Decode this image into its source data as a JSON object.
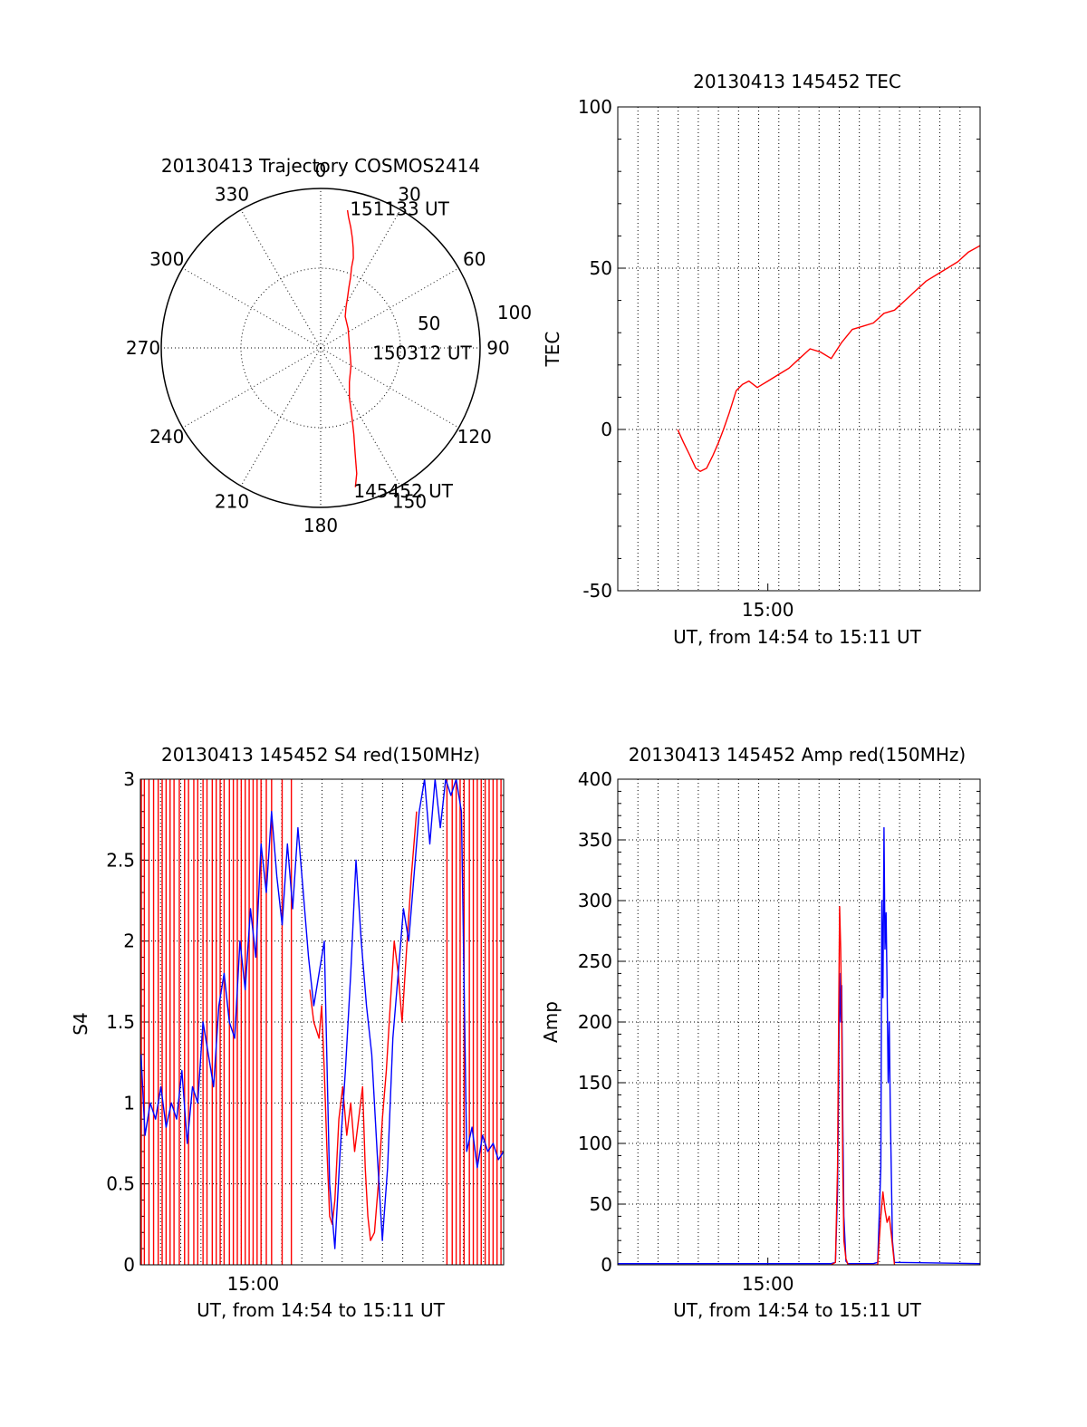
{
  "chart_data": [
    {
      "id": "trajectory",
      "type": "polar",
      "title": "20130413 Trajectory COSMOS2414",
      "angle_labels": [
        "0",
        "30",
        "60",
        "90",
        "120",
        "150",
        "180",
        "210",
        "240",
        "270",
        "300",
        "330"
      ],
      "radius_labels": [
        "50",
        "100"
      ],
      "rmax": 100,
      "series": [
        {
          "color": "#ff0000",
          "azimuth": [
            11,
            12,
            14,
            16,
            18,
            20,
            21,
            23,
            25,
            28,
            32,
            38,
            55,
            120,
            140,
            150,
            155,
            159,
            162,
            164,
            166
          ],
          "zenith": [
            88,
            84,
            78,
            72,
            66,
            60,
            54,
            48,
            42,
            36,
            30,
            25,
            21,
            22,
            28,
            36,
            46,
            58,
            70,
            82,
            90
          ]
        }
      ],
      "annotations": [
        {
          "text": "151133 UT",
          "azimuth": 14,
          "zenith": 90
        },
        {
          "text": "150312 UT",
          "azimuth": 95,
          "zenith": 36
        },
        {
          "text": "145452 UT",
          "azimuth": 165,
          "zenith": 93
        }
      ]
    },
    {
      "id": "tec",
      "type": "line",
      "title": "20130413 145452 TEC",
      "xlabel": "UT, from 14:54 to 15:11 UT",
      "ylabel": "TEC",
      "xlim": [
        14.8578,
        15.2011
      ],
      "ylim": [
        -50,
        100
      ],
      "y_ticks": [
        -50,
        0,
        50,
        100
      ],
      "x_ticks": [
        {
          "value": 15.0,
          "label": "15:00"
        }
      ],
      "series": [
        {
          "color": "#ff0000",
          "x": [
            14.9145,
            14.92,
            14.926,
            14.9317,
            14.936,
            14.942,
            14.948,
            14.9533,
            14.958,
            14.9633,
            14.97,
            14.976,
            14.982,
            14.99,
            15.0,
            15.01,
            15.02,
            15.03,
            15.04,
            15.05,
            15.06,
            15.07,
            15.08,
            15.09,
            15.1,
            15.11,
            15.12,
            15.13,
            15.14,
            15.15,
            15.16,
            15.17,
            15.18,
            15.19,
            15.2011
          ],
          "y": [
            0,
            -4,
            -8,
            -12,
            -13,
            -12,
            -8,
            -4,
            0,
            5,
            12,
            14,
            15,
            13,
            15,
            17,
            19,
            22,
            25,
            24,
            22,
            27,
            31,
            32,
            33,
            36,
            37,
            40,
            43,
            46,
            48,
            50,
            52,
            55,
            57
          ]
        }
      ]
    },
    {
      "id": "s4",
      "type": "line",
      "title": "20130413 145452 S4 red(150MHz)",
      "xlabel": "UT, from 14:54 to 15:11 UT",
      "ylabel": "S4",
      "xlim": [
        14.9145,
        15.19
      ],
      "ylim": [
        0,
        3
      ],
      "y_ticks": [
        0,
        0.5,
        1,
        1.5,
        2,
        2.5,
        3
      ],
      "y_tick_labels": [
        "0",
        "0.5",
        "1",
        "1.5",
        "2",
        "2.5",
        "3"
      ],
      "x_ticks": [
        {
          "value": 15.0,
          "label": "15:00"
        }
      ],
      "red_spikes_x": [
        14.9152,
        14.9175,
        14.921,
        14.9245,
        14.928,
        14.931,
        14.934,
        14.937,
        14.94,
        14.944,
        14.948,
        14.951,
        14.955,
        14.958,
        14.962,
        14.965,
        14.969,
        14.972,
        14.975,
        14.978,
        14.982,
        14.985,
        14.988,
        14.991,
        14.994,
        14.997,
        15.0,
        15.003,
        15.006,
        15.01,
        15.014,
        15.022,
        15.029,
        15.147,
        15.151,
        15.154,
        15.157,
        15.16,
        15.164,
        15.167,
        15.17,
        15.173,
        15.176,
        15.179,
        15.182,
        15.185,
        15.188
      ],
      "series": [
        {
          "name": "red",
          "color": "#ff0000",
          "x": [
            15.043,
            15.046,
            15.05,
            15.052,
            15.054,
            15.056,
            15.058,
            15.06,
            15.062,
            15.065,
            15.068,
            15.071,
            15.074,
            15.077,
            15.08,
            15.083,
            15.085,
            15.087,
            15.089,
            15.092,
            15.095,
            15.098,
            15.101,
            15.104,
            15.107,
            15.11,
            15.113,
            15.116,
            15.12,
            15.124
          ],
          "y": [
            1.7,
            1.5,
            1.4,
            1.6,
            1.2,
            0.7,
            0.3,
            0.25,
            0.4,
            0.9,
            1.1,
            0.8,
            1.0,
            0.7,
            0.9,
            1.1,
            0.6,
            0.3,
            0.15,
            0.2,
            0.5,
            0.9,
            1.2,
            1.6,
            2.0,
            1.8,
            1.5,
            1.9,
            2.4,
            2.8
          ]
        },
        {
          "name": "blue",
          "color": "#0000ff",
          "x": [
            14.915,
            14.918,
            14.922,
            14.926,
            14.93,
            14.934,
            14.938,
            14.942,
            14.946,
            14.95,
            14.954,
            14.958,
            14.962,
            14.966,
            14.97,
            14.974,
            14.978,
            14.982,
            14.986,
            14.99,
            14.994,
            14.998,
            15.002,
            15.006,
            15.01,
            15.014,
            15.018,
            15.022,
            15.026,
            15.03,
            15.034,
            15.038,
            15.042,
            15.046,
            15.05,
            15.054,
            15.058,
            15.062,
            15.066,
            15.07,
            15.074,
            15.078,
            15.082,
            15.086,
            15.09,
            15.094,
            15.098,
            15.102,
            15.106,
            15.11,
            15.114,
            15.118,
            15.122,
            15.126,
            15.13,
            15.134,
            15.138,
            15.142,
            15.146,
            15.15,
            15.154,
            15.158,
            15.162,
            15.166,
            15.17,
            15.174,
            15.178,
            15.182,
            15.186,
            15.19
          ],
          "y": [
            1.3,
            0.8,
            1.0,
            0.9,
            1.1,
            0.85,
            1.0,
            0.9,
            1.2,
            0.75,
            1.1,
            1.0,
            1.5,
            1.3,
            1.1,
            1.6,
            1.8,
            1.5,
            1.4,
            2.0,
            1.7,
            2.2,
            1.9,
            2.6,
            2.3,
            2.8,
            2.4,
            2.1,
            2.6,
            2.2,
            2.7,
            2.3,
            1.9,
            1.6,
            1.8,
            2.0,
            0.5,
            0.1,
            0.7,
            1.2,
            1.8,
            2.5,
            2.0,
            1.6,
            1.3,
            0.7,
            0.15,
            0.6,
            1.4,
            1.8,
            2.2,
            2.0,
            2.4,
            2.8,
            3.0,
            2.6,
            3.0,
            2.7,
            3.0,
            2.9,
            3.0,
            2.8,
            0.7,
            0.85,
            0.6,
            0.8,
            0.7,
            0.75,
            0.65,
            0.7
          ]
        }
      ]
    },
    {
      "id": "amp",
      "type": "line",
      "title": "20130413 145452 Amp red(150MHz)",
      "xlabel": "UT, from 14:54 to 15:11 UT",
      "ylabel": "Amp",
      "xlim": [
        14.8578,
        15.2011
      ],
      "ylim": [
        0,
        400
      ],
      "y_ticks": [
        0,
        50,
        100,
        150,
        200,
        250,
        300,
        350,
        400
      ],
      "x_ticks": [
        {
          "value": 15.0,
          "label": "15:00"
        }
      ],
      "series": [
        {
          "name": "blue",
          "color": "#0000ff",
          "x": [
            14.8578,
            15.0,
            15.06,
            15.064,
            15.066,
            15.067,
            15.068,
            15.069,
            15.07,
            15.071,
            15.072,
            15.074,
            15.076,
            15.1,
            15.104,
            15.107,
            15.108,
            15.109,
            15.11,
            15.111,
            15.112,
            15.113,
            15.114,
            15.115,
            15.116,
            15.118,
            15.12,
            15.2011
          ],
          "y": [
            1,
            1,
            1,
            2,
            60,
            150,
            240,
            200,
            230,
            120,
            40,
            3,
            1,
            1,
            2,
            80,
            300,
            220,
            360,
            260,
            290,
            230,
            150,
            200,
            130,
            20,
            2,
            1
          ]
        },
        {
          "name": "red",
          "color": "#ff0000",
          "x": [
            15.06,
            15.064,
            15.066,
            15.067,
            15.068,
            15.069,
            15.07,
            15.071,
            15.072,
            15.074,
            15.076,
            15.104,
            15.107,
            15.109,
            15.111,
            15.113,
            15.115,
            15.117,
            15.12
          ],
          "y": [
            0,
            2,
            80,
            200,
            295,
            260,
            200,
            80,
            20,
            5,
            0,
            0,
            40,
            60,
            45,
            35,
            40,
            25,
            0
          ]
        }
      ]
    }
  ]
}
